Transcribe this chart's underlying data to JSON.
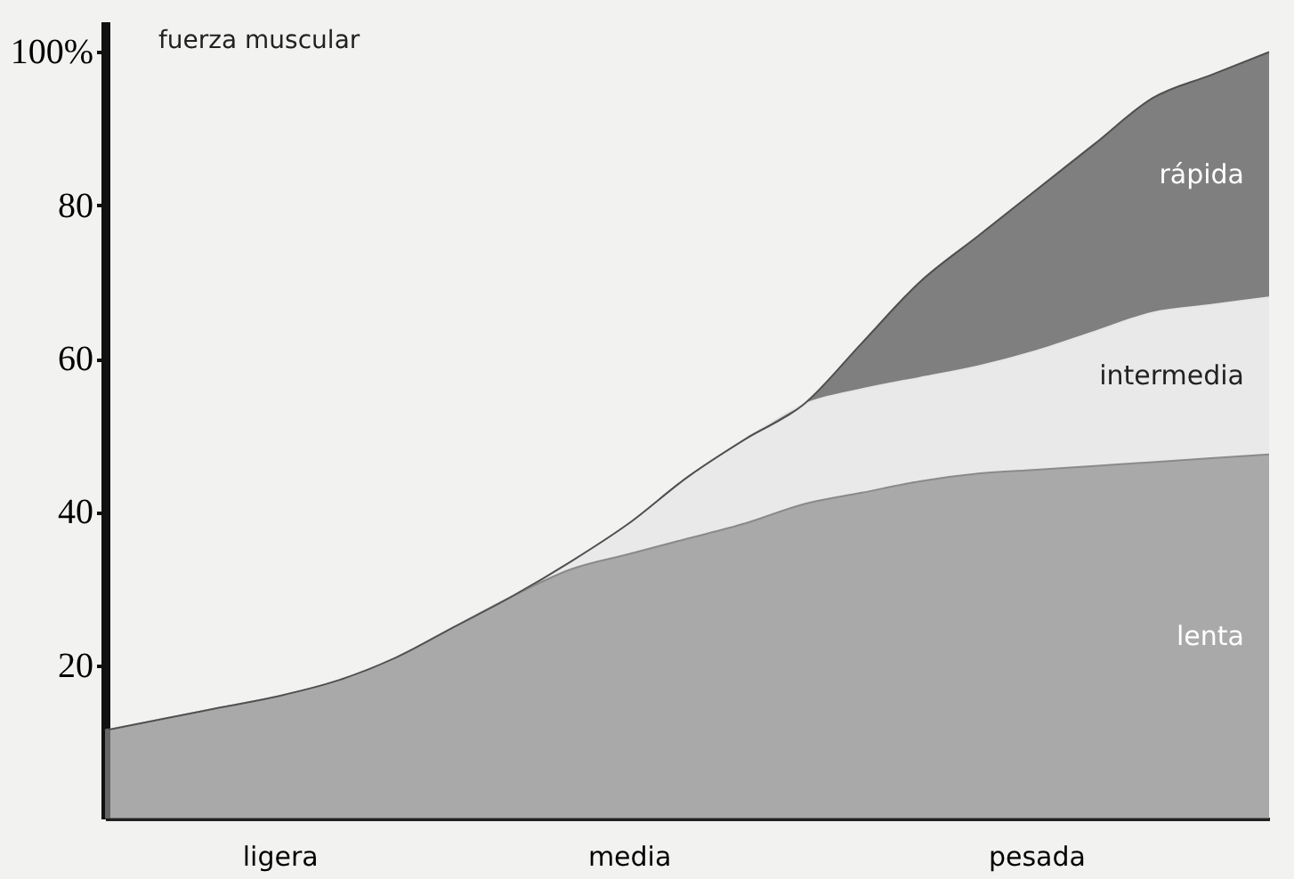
{
  "chart_data": {
    "type": "area",
    "stacked": true,
    "ylabel": "fuerza muscular",
    "categories": [
      null,
      null,
      null,
      "ligera",
      null,
      null,
      null,
      null,
      null,
      "media",
      null,
      null,
      null,
      null,
      null,
      null,
      "pesada",
      null,
      null,
      null,
      null
    ],
    "series": [
      {
        "name": "lenta",
        "color": "#8a8a8a",
        "values": [
          11.5,
          13,
          14.5,
          16,
          18,
          21,
          25,
          29,
          32.5,
          34.5,
          36.5,
          38.5,
          41,
          42.5,
          44,
          45,
          45.5,
          46,
          46.5,
          47,
          47.5
        ]
      },
      {
        "name": "intermedia",
        "color": "#e6e6e6",
        "values": [
          0,
          0,
          0,
          0,
          0,
          0,
          0,
          0,
          1,
          4,
          8,
          11,
          13,
          13.5,
          13.5,
          14,
          15.5,
          17.5,
          19.5,
          20,
          20.5
        ]
      },
      {
        "name": "rápida",
        "color": "#4f4f4f",
        "values": [
          0,
          0,
          0,
          0,
          0,
          0,
          0,
          0,
          0,
          0,
          0,
          0,
          0,
          6,
          12.5,
          17,
          21,
          24.5,
          28,
          30,
          32
        ]
      }
    ],
    "ylim": [
      0,
      104
    ],
    "yticks": [
      20,
      40,
      60,
      80,
      {
        "value": 100,
        "label": "100%"
      }
    ],
    "grid": false,
    "legend": false
  }
}
